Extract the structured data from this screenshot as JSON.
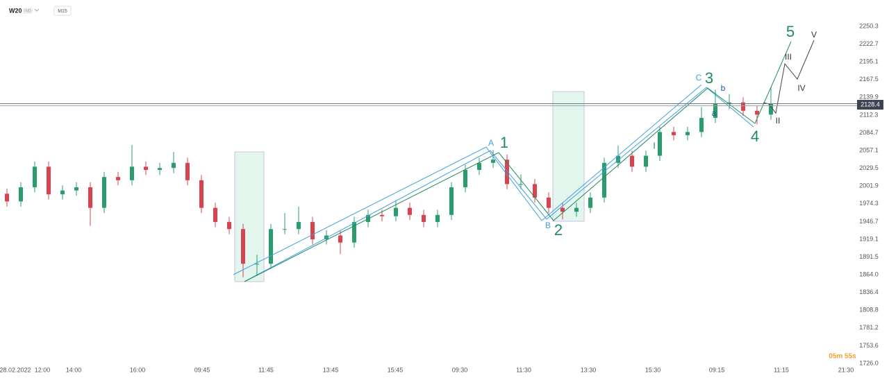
{
  "header": {
    "symbol": "W20",
    "badge": "IND",
    "timeframe": "M15"
  },
  "chart_data": {
    "type": "candlestick",
    "x": [
      0,
      1,
      2,
      3,
      4,
      5,
      6,
      7,
      8,
      9,
      10,
      11,
      12,
      13,
      14,
      15,
      16,
      17,
      18,
      19,
      20,
      21,
      22,
      23,
      24,
      25,
      26,
      27,
      28,
      29,
      30,
      31,
      32,
      33,
      34,
      35,
      36,
      37,
      38,
      39,
      40,
      41,
      42,
      43,
      44,
      45,
      46,
      47,
      48,
      49,
      50,
      51,
      52,
      53,
      54,
      55
    ],
    "open": [
      1990,
      1978,
      2000,
      2032,
      1989,
      1995,
      2000,
      1968,
      2016,
      2011,
      2032,
      2027,
      2030,
      2038,
      2011,
      1968,
      1946,
      1935,
      1881,
      1881,
      1935,
      1935,
      1946,
      1919,
      1925,
      1914,
      1946,
      1957,
      1955,
      1968,
      1957,
      1946,
      1957,
      2000,
      2027,
      2038,
      2043,
      2005,
      2005,
      1984,
      1968,
      1962,
      1968,
      1984,
      2038,
      2049,
      2032,
      2049,
      2086,
      2081,
      2086,
      2108,
      2130,
      2132,
      2119,
      2113
    ],
    "high": [
      1998,
      2008,
      2040,
      2040,
      2003,
      2008,
      2008,
      2024,
      2024,
      2066,
      2040,
      2038,
      2055,
      2046,
      2019,
      1976,
      1954,
      1943,
      1895,
      1943,
      1960,
      1970,
      1954,
      1933,
      1933,
      1954,
      1965,
      1965,
      1980,
      1976,
      1965,
      1965,
      2008,
      2035,
      2046,
      2058,
      2051,
      2020,
      2013,
      1992,
      1976,
      1976,
      1992,
      2046,
      2065,
      2057,
      2057,
      2094,
      2094,
      2094,
      2125,
      2152,
      2145,
      2140,
      2127,
      2155
    ],
    "low": [
      1970,
      1970,
      1992,
      1981,
      1981,
      1987,
      1940,
      1960,
      2003,
      2003,
      2019,
      2019,
      2022,
      2003,
      1960,
      1938,
      1927,
      1860,
      1862,
      1873,
      1927,
      1927,
      1911,
      1911,
      1896,
      1906,
      1938,
      1947,
      1947,
      1949,
      1938,
      1938,
      1949,
      1992,
      2019,
      2030,
      1997,
      1997,
      1976,
      1960,
      1950,
      1954,
      1960,
      1976,
      2030,
      2024,
      2024,
      2041,
      2073,
      2073,
      2078,
      2100,
      2122,
      2111,
      2098,
      2105
    ],
    "close": [
      1978,
      2000,
      2032,
      1989,
      1995,
      2000,
      1968,
      2016,
      2011,
      2032,
      2027,
      2030,
      2038,
      2011,
      1968,
      1946,
      1935,
      1881,
      1881,
      1935,
      1935,
      1946,
      1919,
      1925,
      1914,
      1946,
      1957,
      1955,
      1968,
      1957,
      1946,
      1957,
      2000,
      2027,
      2038,
      2043,
      2005,
      2005,
      1984,
      1968,
      1962,
      1968,
      1984,
      2038,
      2049,
      2032,
      2049,
      2086,
      2081,
      2086,
      2108,
      2130,
      2132,
      2119,
      2113,
      2130
    ],
    "up_color": "#2a9d6e",
    "down_color": "#d9434f",
    "current_price": 2128.4,
    "xlim": [
      -0.5,
      61
    ],
    "xticks": [
      {
        "value": 0.6,
        "label": "28.02.2022"
      },
      {
        "value": 2.55,
        "label": "12:00"
      },
      {
        "value": 4.8,
        "label": "14:00"
      },
      {
        "value": 9.4,
        "label": "16:00"
      },
      {
        "value": 14.05,
        "label": "09:45"
      },
      {
        "value": 18.65,
        "label": "11:45"
      },
      {
        "value": 23.3,
        "label": "13:45"
      },
      {
        "value": 27.95,
        "label": "15:45"
      },
      {
        "value": 32.6,
        "label": "09:30"
      },
      {
        "value": 37.2,
        "label": "11:30"
      },
      {
        "value": 41.85,
        "label": "13:30"
      },
      {
        "value": 46.5,
        "label": "15:30"
      },
      {
        "value": 51.1,
        "label": "09:15"
      },
      {
        "value": 55.75,
        "label": "11:15"
      },
      {
        "value": 60.4,
        "label": "21:30"
      }
    ],
    "ylim": [
      1724.9,
      2282.7
    ],
    "yticks": [
      2250.3,
      2222.7,
      2195.1,
      2167.5,
      2139.9,
      2112.3,
      2084.7,
      2057.1,
      2029.5,
      2001.9,
      1974.3,
      1946.7,
      1919.1,
      1891.5,
      {
        "value": 1864,
        "label": "1864.0"
      },
      1836.4,
      1808.8,
      1781.2,
      1753.6,
      {
        "value": 1726,
        "label": "1726.0"
      }
    ],
    "annotations": [
      "1",
      "2",
      "3",
      "4",
      "5",
      "A",
      "B",
      "C",
      "a",
      "b",
      "I",
      "II",
      "III",
      "IV",
      "V"
    ],
    "countdown": "05m 55s"
  }
}
